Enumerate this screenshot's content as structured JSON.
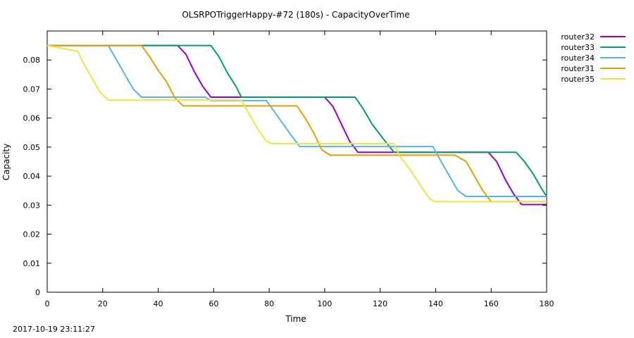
{
  "chart_data": {
    "type": "line",
    "title": "OLSRPOTriggerHappy-#72 (180s) - CapacityOverTime",
    "xlabel": "Time",
    "ylabel": "Capacity",
    "xlim": [
      0,
      180
    ],
    "ylim": [
      0,
      0.09
    ],
    "x_ticks": [
      "0",
      "20",
      "40",
      "60",
      "80",
      "100",
      "120",
      "140",
      "160",
      "180"
    ],
    "y_ticks": [
      "0",
      "0.01",
      "0.02",
      "0.03",
      "0.04",
      "0.05",
      "0.06",
      "0.07",
      "0.08"
    ],
    "grid": false,
    "legend_position": "right, outside plot",
    "series": [
      {
        "name": "router32",
        "color": "#9400d3",
        "points": [
          [
            0,
            0.085
          ],
          [
            47,
            0.085
          ],
          [
            50,
            0.082
          ],
          [
            53,
            0.076
          ],
          [
            56,
            0.071
          ],
          [
            59,
            0.0672
          ],
          [
            100,
            0.0672
          ],
          [
            103,
            0.064
          ],
          [
            106,
            0.058
          ],
          [
            109,
            0.052
          ],
          [
            112,
            0.0482
          ],
          [
            126,
            0.0482
          ],
          [
            159,
            0.0482
          ],
          [
            162,
            0.045
          ],
          [
            165,
            0.039
          ],
          [
            168,
            0.034
          ],
          [
            171,
            0.0302
          ],
          [
            180,
            0.0302
          ]
        ]
      },
      {
        "name": "router33",
        "color": "#009e73",
        "points": [
          [
            0,
            0.085
          ],
          [
            59,
            0.085
          ],
          [
            62,
            0.081
          ],
          [
            65,
            0.0755
          ],
          [
            68,
            0.071
          ],
          [
            70,
            0.0672
          ],
          [
            111,
            0.0672
          ],
          [
            114,
            0.063
          ],
          [
            117,
            0.058
          ],
          [
            121,
            0.053
          ],
          [
            125,
            0.0482
          ],
          [
            169,
            0.0482
          ],
          [
            172,
            0.045
          ],
          [
            175,
            0.041
          ],
          [
            178,
            0.036
          ],
          [
            180,
            0.033
          ]
        ]
      },
      {
        "name": "router34",
        "color": "#56b4e9",
        "points": [
          [
            0,
            0.085
          ],
          [
            22,
            0.085
          ],
          [
            25,
            0.08
          ],
          [
            28,
            0.075
          ],
          [
            31,
            0.07
          ],
          [
            34,
            0.0672
          ],
          [
            57,
            0.0672
          ],
          [
            59,
            0.066
          ],
          [
            79,
            0.066
          ],
          [
            82,
            0.062
          ],
          [
            85,
            0.058
          ],
          [
            88,
            0.054
          ],
          [
            91,
            0.0502
          ],
          [
            139,
            0.0502
          ],
          [
            142,
            0.045
          ],
          [
            145,
            0.04
          ],
          [
            148,
            0.035
          ],
          [
            151,
            0.033
          ],
          [
            180,
            0.033
          ]
        ]
      },
      {
        "name": "router31",
        "color": "#e69f00",
        "points": [
          [
            0,
            0.085
          ],
          [
            34,
            0.085
          ],
          [
            37,
            0.081
          ],
          [
            40,
            0.0765
          ],
          [
            43,
            0.0725
          ],
          [
            46,
            0.067
          ],
          [
            49,
            0.0642
          ],
          [
            90,
            0.0642
          ],
          [
            93,
            0.06
          ],
          [
            96,
            0.055
          ],
          [
            99,
            0.049
          ],
          [
            102,
            0.0472
          ],
          [
            147,
            0.0472
          ],
          [
            151,
            0.045
          ],
          [
            154,
            0.04
          ],
          [
            157,
            0.035
          ],
          [
            160,
            0.0312
          ],
          [
            180,
            0.0312
          ]
        ]
      },
      {
        "name": "router35",
        "color": "#f0e442",
        "points": [
          [
            0,
            0.085
          ],
          [
            11,
            0.083
          ],
          [
            13,
            0.079
          ],
          [
            16,
            0.074
          ],
          [
            19,
            0.069
          ],
          [
            22,
            0.0662
          ],
          [
            70,
            0.0662
          ],
          [
            73,
            0.061
          ],
          [
            76,
            0.056
          ],
          [
            79,
            0.052
          ],
          [
            81,
            0.0512
          ],
          [
            125,
            0.0512
          ],
          [
            127,
            0.047
          ],
          [
            131,
            0.042
          ],
          [
            135,
            0.036
          ],
          [
            138,
            0.032
          ],
          [
            140,
            0.0312
          ],
          [
            180,
            0.0312
          ]
        ]
      }
    ]
  },
  "timestamp": "2017-10-19 23:11:27"
}
